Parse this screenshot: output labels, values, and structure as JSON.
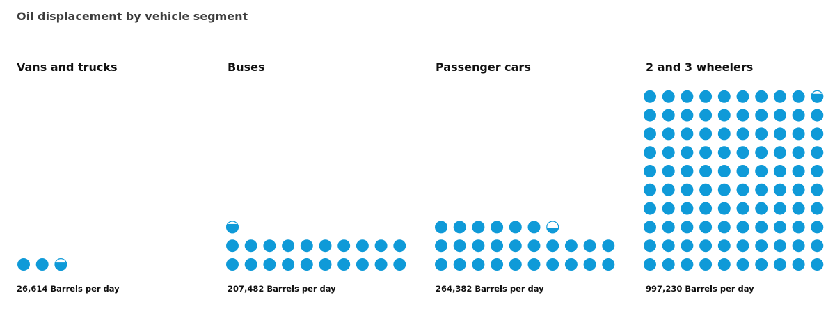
{
  "title": "Oil displacement by vehicle segment",
  "chart_data": {
    "type": "pictogram",
    "title": "Oil displacement by vehicle segment",
    "unit": "Barrels per day",
    "dot_value": 10000,
    "color": "#0f9ad8",
    "segments": [
      {
        "name": "Vans and trucks",
        "value": 26614,
        "label": "26,614 Barrels per day"
      },
      {
        "name": "Buses",
        "value": 207482,
        "label": "207,482 Barrels per day"
      },
      {
        "name": "Passenger cars",
        "value": 264382,
        "label": "264,382 Barrels per day"
      },
      {
        "name": "2 and 3 wheelers",
        "value": 997230,
        "label": "997,230 Barrels per day"
      }
    ]
  }
}
